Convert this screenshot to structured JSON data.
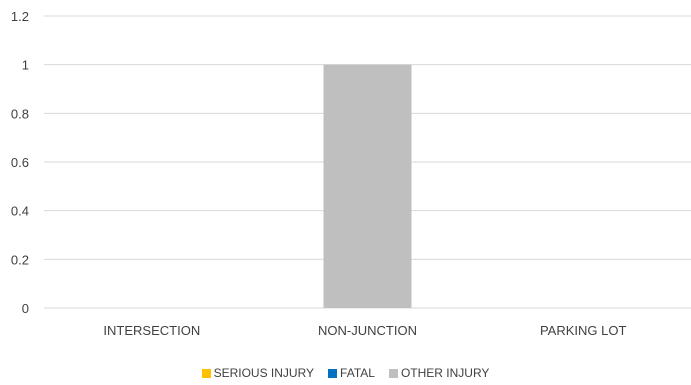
{
  "chart_data": {
    "type": "bar",
    "title": "",
    "xlabel": "",
    "ylabel": "",
    "categories": [
      "INTERSECTION",
      "NON-JUNCTION",
      "PARKING LOT"
    ],
    "ylim": [
      0,
      1.2
    ],
    "yticks": [
      "0",
      "0.2",
      "0.4",
      "0.6",
      "0.8",
      "1",
      "1.2"
    ],
    "yticks_values": [
      0,
      0.2,
      0.4,
      0.6,
      0.8,
      1,
      1.2
    ],
    "grid": true,
    "legend_position": "bottom",
    "stacked": true,
    "series": [
      {
        "name": "SERIOUS INJURY",
        "color": "#FFC000",
        "values": [
          0,
          0,
          0
        ]
      },
      {
        "name": "FATAL",
        "color": "#0070C0",
        "values": [
          0,
          0,
          0
        ]
      },
      {
        "name": "OTHER INJURY",
        "color": "#BFBFBF",
        "values": [
          0,
          1,
          0
        ]
      }
    ]
  }
}
